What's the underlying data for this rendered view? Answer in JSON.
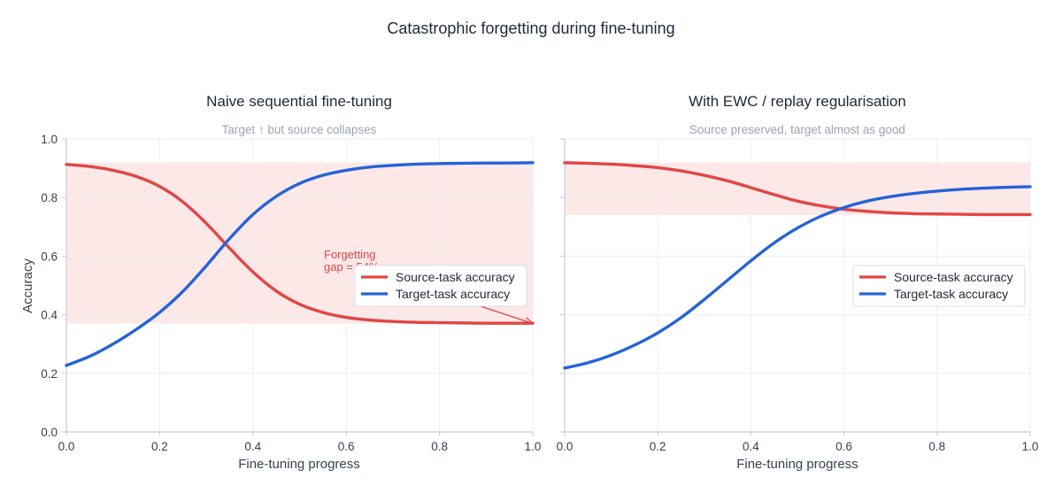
{
  "figure": {
    "suptitle": "Catastrophic forgetting during fine-tuning"
  },
  "colors": {
    "source": "#e24545",
    "target": "#2563d9",
    "band": "#fde8e8",
    "grid": "#eceef2",
    "axis": "#c5cdd8",
    "subtitle": "#9aa3b2"
  },
  "chart_data": [
    {
      "type": "line",
      "title": "Naive sequential fine-tuning",
      "subtitle": "Target ↑ but source collapses",
      "xlabel": "Fine-tuning progress",
      "ylabel": "Accuracy",
      "xlim": [
        0,
        1
      ],
      "ylim": [
        0,
        1
      ],
      "xticks": [
        "0.0",
        "0.2",
        "0.4",
        "0.6",
        "0.8",
        "1.0"
      ],
      "yticks": [
        "0.0",
        "0.2",
        "0.4",
        "0.6",
        "0.8",
        "1.0"
      ],
      "grid": true,
      "legend_position": "center-right",
      "shaded_band": {
        "y_from": 0.37,
        "y_to": 0.92
      },
      "annotation": {
        "text_line1": "Forgetting",
        "text_line2": "gap = 54%",
        "arrow_to_x": 1.0,
        "arrow_to_y": 0.37
      },
      "x": [
        0.0,
        0.05,
        0.1,
        0.15,
        0.2,
        0.25,
        0.3,
        0.35,
        0.4,
        0.45,
        0.5,
        0.55,
        0.6,
        0.65,
        0.7,
        0.75,
        0.8,
        0.85,
        0.9,
        0.95,
        1.0
      ],
      "series": [
        {
          "name": "Source-task accuracy",
          "color": "#e24545",
          "values": [
            0.913,
            0.906,
            0.893,
            0.872,
            0.838,
            0.785,
            0.712,
            0.627,
            0.546,
            0.481,
            0.436,
            0.408,
            0.391,
            0.382,
            0.377,
            0.374,
            0.373,
            0.372,
            0.371,
            0.371,
            0.371
          ]
        },
        {
          "name": "Target-task accuracy",
          "color": "#2563d9",
          "values": [
            0.227,
            0.258,
            0.3,
            0.35,
            0.408,
            0.48,
            0.567,
            0.66,
            0.742,
            0.804,
            0.848,
            0.876,
            0.893,
            0.904,
            0.91,
            0.914,
            0.916,
            0.917,
            0.918,
            0.918,
            0.919
          ]
        }
      ]
    },
    {
      "type": "line",
      "title": "With EWC / replay regularisation",
      "subtitle": "Source preserved, target almost as good",
      "xlabel": "Fine-tuning progress",
      "ylabel": "",
      "xlim": [
        0,
        1
      ],
      "ylim": [
        0,
        1
      ],
      "xticks": [
        "0.0",
        "0.2",
        "0.4",
        "0.6",
        "0.8",
        "1.0"
      ],
      "yticks": [],
      "grid": true,
      "legend_position": "center-right",
      "shaded_band": {
        "y_from": 0.74,
        "y_to": 0.92
      },
      "x": [
        0.0,
        0.05,
        0.1,
        0.15,
        0.2,
        0.25,
        0.3,
        0.35,
        0.4,
        0.45,
        0.5,
        0.55,
        0.6,
        0.65,
        0.7,
        0.75,
        0.8,
        0.85,
        0.9,
        0.95,
        1.0
      ],
      "series": [
        {
          "name": "Source-task accuracy",
          "color": "#e24545",
          "values": [
            0.919,
            0.917,
            0.914,
            0.909,
            0.902,
            0.891,
            0.876,
            0.857,
            0.834,
            0.81,
            0.788,
            0.772,
            0.76,
            0.753,
            0.748,
            0.745,
            0.744,
            0.743,
            0.742,
            0.742,
            0.742
          ]
        },
        {
          "name": "Target-task accuracy",
          "color": "#2563d9",
          "values": [
            0.218,
            0.236,
            0.262,
            0.296,
            0.338,
            0.39,
            0.452,
            0.518,
            0.584,
            0.645,
            0.696,
            0.736,
            0.766,
            0.788,
            0.803,
            0.814,
            0.822,
            0.828,
            0.832,
            0.835,
            0.837
          ]
        }
      ]
    }
  ]
}
